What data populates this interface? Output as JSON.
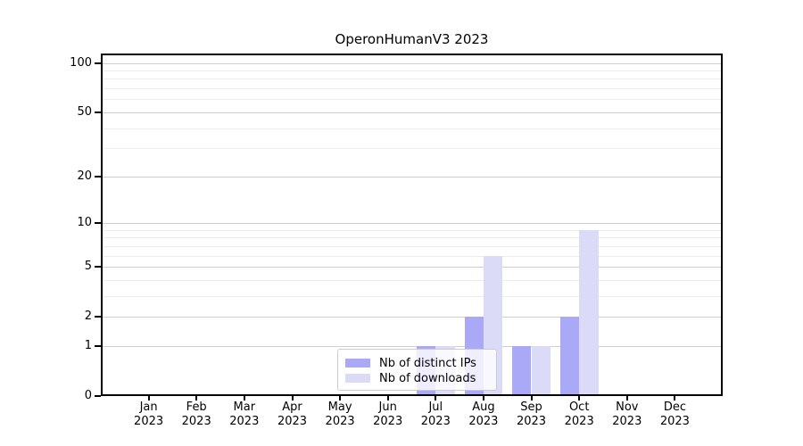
{
  "figure": {
    "title": "OperonHumanV3 2023"
  },
  "chart_data": {
    "type": "bar",
    "title": "OperonHumanV3 2023",
    "scale": "log1p",
    "categories": [
      "Jan",
      "Feb",
      "Mar",
      "Apr",
      "May",
      "Jun",
      "Jul",
      "Aug",
      "Sep",
      "Oct",
      "Nov",
      "Dec"
    ],
    "category_year": "2023",
    "series": [
      {
        "name": "Nb of distinct IPs",
        "color": "#a9a9f8",
        "values": [
          0,
          0,
          0,
          0,
          0,
          0,
          1,
          2,
          1,
          2,
          0,
          0
        ]
      },
      {
        "name": "Nb of downloads",
        "color": "#dbdbf8",
        "values": [
          0,
          0,
          0,
          0,
          0,
          0,
          1,
          6,
          1,
          9,
          0,
          0
        ]
      }
    ],
    "yticks": [
      0,
      1,
      2,
      5,
      10,
      20,
      50,
      100
    ],
    "yticks_minor": [
      3,
      4,
      6,
      7,
      8,
      9,
      30,
      40,
      60,
      70,
      80,
      90
    ],
    "ylim": [
      0,
      114
    ],
    "xlabel": "",
    "ylabel": "",
    "grid": true,
    "legend_position": "bottom-center",
    "colors": {
      "grid_major": "#cfcfcf",
      "grid_minor": "#ececec",
      "spine": "#000000",
      "text": "#000000",
      "legend_border": "#cccccc"
    }
  }
}
